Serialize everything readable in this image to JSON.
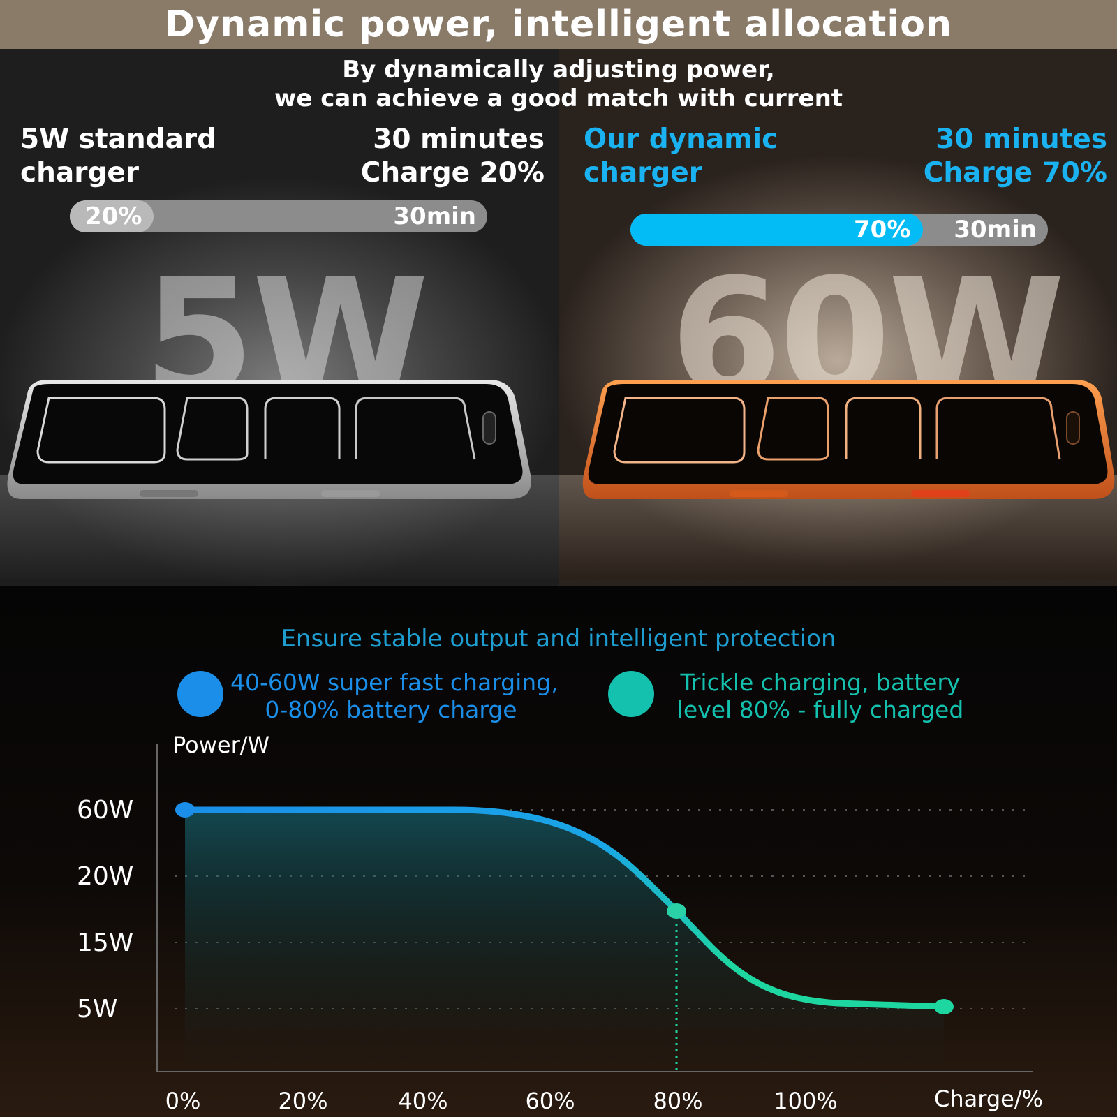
{
  "header": {
    "title": "Dynamic power, intelligent allocation"
  },
  "subtitle": {
    "line1": "By dynamically adjusting power,",
    "line2": "we can achieve a good match with current"
  },
  "standard": {
    "name_line1": "5W standard",
    "name_line2": "charger",
    "time_line1": "30 minutes",
    "time_line2": "Charge 20%",
    "bar_percent_label": "20%",
    "bar_time_label": "30min",
    "bar_fill": 0.2,
    "watt": "5W",
    "accent": "#b9b9b9"
  },
  "dynamic": {
    "name_line1": "Our dynamic",
    "name_line2": "charger",
    "time_line1": "30 minutes",
    "time_line2": "Charge 70%",
    "bar_percent_label": "70%",
    "bar_time_label": "30min",
    "bar_fill": 0.7,
    "watt": "60W",
    "accent": "#04bcf5"
  },
  "protection": {
    "heading": "Ensure stable output and intelligent protection",
    "legend": [
      {
        "line1": "40-60W super fast charging,",
        "line2": "0-80% battery charge",
        "color": "#1a8ee8",
        "icon": "blue-dot-icon"
      },
      {
        "line1": "Trickle charging, battery",
        "line2": "level 80% - fully charged",
        "color": "#14c0ae",
        "icon": "teal-dot-icon"
      }
    ]
  },
  "chart_data": {
    "type": "line",
    "ylabel": "Power/W",
    "xlabel": "Charge/%",
    "y_tick_labels": [
      "60W",
      "20W",
      "15W",
      "5W"
    ],
    "x_tick_labels": [
      "0%",
      "20%",
      "40%",
      "60%",
      "80%",
      "100%"
    ],
    "points": [
      {
        "x": "0%",
        "y": "60W"
      },
      {
        "x": "80%",
        "y": "between 15W and 20W"
      },
      {
        "x": "100%+",
        "y": "5W"
      }
    ],
    "marker_at": "80%",
    "grid": true,
    "colors": {
      "fast": "#1a8ee8",
      "trickle": "#1ed6a0"
    }
  }
}
